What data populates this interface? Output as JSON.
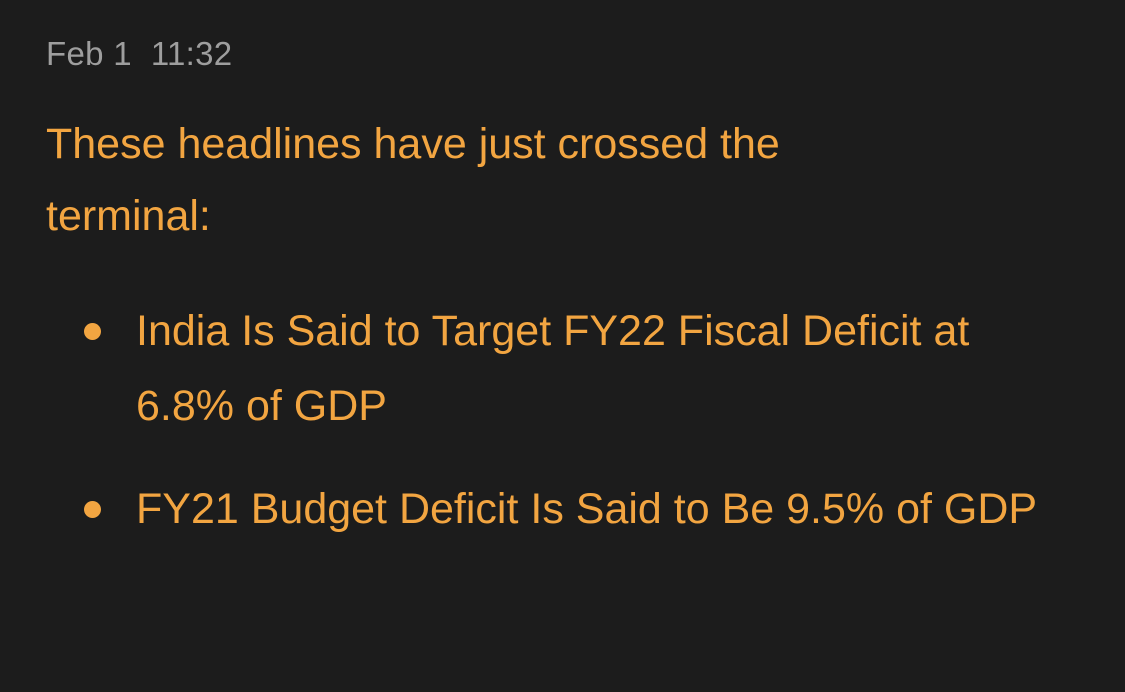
{
  "message": {
    "timestamp": "Feb 1  11:32",
    "intro": "These headlines have just crossed the terminal:",
    "headlines": [
      "India Is Said to Target FY22 Fiscal Deficit at 6.8% of GDP",
      "FY21 Budget Deficit Is Said to Be 9.5% of GDP"
    ]
  },
  "colors": {
    "background": "#1c1c1c",
    "timestamp": "#9e9e9e",
    "accent": "#f2a541"
  }
}
